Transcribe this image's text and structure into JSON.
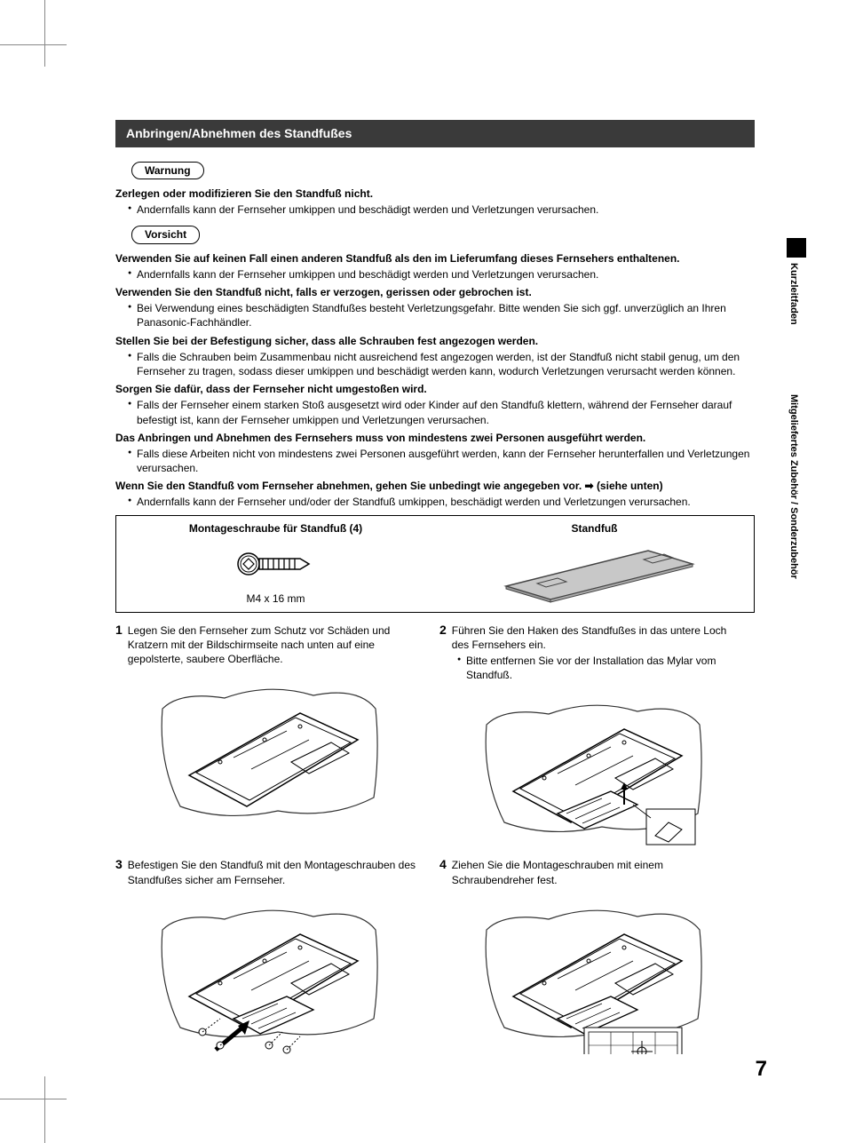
{
  "section_title": "Anbringen/Abnehmen des Standfußes",
  "warning_label": "Warnung",
  "warning_heading": "Zerlegen oder modifizieren Sie den Standfuß nicht.",
  "warning_bullet": "Andernfalls kann der Fernseher umkippen und beschädigt werden und Verletzungen verursachen.",
  "caution_label": "Vorsicht",
  "cautions": [
    {
      "heading": "Verwenden Sie auf keinen Fall einen anderen Standfuß als den im Lieferumfang dieses Fernsehers enthaltenen.",
      "bullets": [
        "Andernfalls kann der Fernseher umkippen und beschädigt werden und Verletzungen verursachen."
      ]
    },
    {
      "heading": "Verwenden Sie den Standfuß nicht, falls er verzogen, gerissen oder gebrochen ist.",
      "bullets": [
        "Bei Verwendung eines beschädigten Standfußes besteht Verletzungsgefahr. Bitte wenden Sie sich ggf. unverzüglich an Ihren Panasonic-Fachhändler."
      ]
    },
    {
      "heading": "Stellen Sie bei der Befestigung sicher, dass alle Schrauben fest angezogen werden.",
      "bullets": [
        "Falls die Schrauben beim Zusammenbau nicht ausreichend fest angezogen werden, ist der Standfuß nicht stabil genug, um den Fernseher zu tragen, sodass dieser umkippen und beschädigt werden kann, wodurch Verletzungen verursacht werden können."
      ]
    },
    {
      "heading": "Sorgen Sie dafür, dass der Fernseher nicht umgestoßen wird.",
      "bullets": [
        "Falls der Fernseher einem starken Stoß ausgesetzt wird oder Kinder auf den Standfuß klettern, während der Fernseher darauf befestigt ist, kann der Fernseher umkippen und Verletzungen verursachen."
      ]
    },
    {
      "heading": "Das Anbringen und Abnehmen des Fernsehers muss von mindestens zwei Personen ausgeführt werden.",
      "bullets": [
        "Falls diese Arbeiten nicht von mindestens zwei Personen ausgeführt werden, kann der Fernseher herunterfallen und Verletzungen verursachen."
      ]
    },
    {
      "heading": "Wenn Sie den Standfuß vom Fernseher abnehmen, gehen Sie unbedingt wie angegeben vor. ",
      "heading_suffix": "(siehe unten)",
      "bullets": [
        "Andernfalls kann der Fernseher und/oder der Standfuß umkippen, beschädigt werden und Verletzungen verursachen."
      ]
    }
  ],
  "parts": {
    "screw_title": "Montageschraube für Standfuß (4)",
    "screw_size": "M4 x 16 mm",
    "stand_title": "Standfuß"
  },
  "steps": [
    {
      "num": "1",
      "text": "Legen Sie den Fernseher zum Schutz vor Schäden und Kratzern mit der Bildschirmseite nach unten auf eine gepolsterte, saubere Oberfläche."
    },
    {
      "num": "2",
      "text": "Führen Sie den Haken des Standfußes in das untere Loch des Fernsehers ein.",
      "bullets": [
        "Bitte entfernen Sie vor der Installation das Mylar vom Standfuß."
      ]
    },
    {
      "num": "3",
      "text": "Befestigen Sie den Standfuß mit den Montageschrauben des Standfußes sicher am Fernseher."
    },
    {
      "num": "4",
      "text": "Ziehen Sie die Montageschrauben mit einem Schraubendreher fest."
    }
  ],
  "side": {
    "tab1": "Kurzleitfaden",
    "tab2": "Mitgeliefertes Zubehör / Sonderzubehör"
  },
  "page_number": "7"
}
